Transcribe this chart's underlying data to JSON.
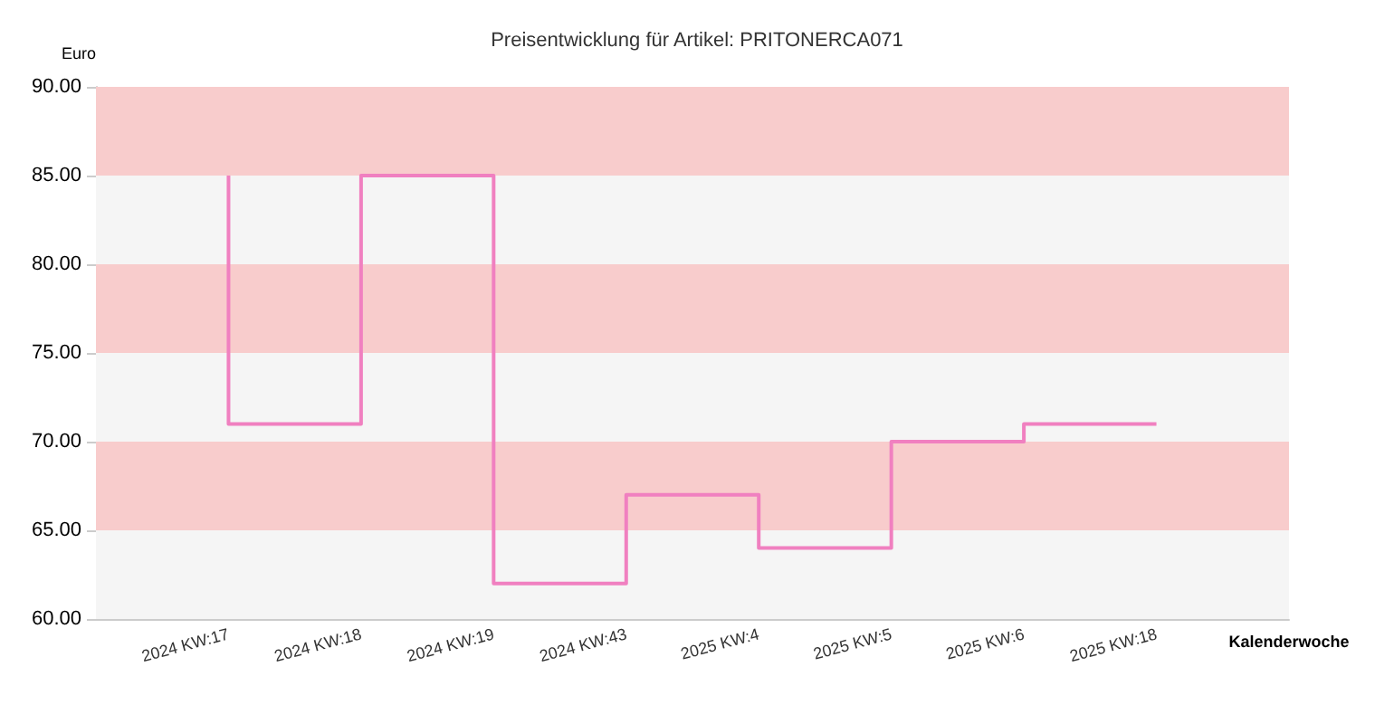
{
  "chart_data": {
    "type": "step",
    "title": "Preisentwicklung für Artikel: PRITONERCA071",
    "ylabel": "Euro",
    "xlabel": "Kalenderwoche",
    "categories": [
      "2024 KW:17",
      "2024 KW:18",
      "2024 KW:19",
      "2024 KW:43",
      "2025 KW:4",
      "2025 KW:5",
      "2025 KW:6",
      "2025 KW:18"
    ],
    "series": [
      {
        "color": "#f080c0",
        "values": [
          85,
          71,
          85,
          62,
          67,
          64,
          70,
          71
        ]
      }
    ],
    "ylim": [
      60,
      90
    ],
    "yticks": [
      {
        "value": 60,
        "label": "60.00"
      },
      {
        "value": 65,
        "label": "65.00"
      },
      {
        "value": 70,
        "label": "70.00"
      },
      {
        "value": 75,
        "label": "75.00"
      },
      {
        "value": 80,
        "label": "80.00"
      },
      {
        "value": 85,
        "label": "85.00"
      },
      {
        "value": 90,
        "label": "90.00"
      }
    ],
    "bands": [
      {
        "axis": "y",
        "from": 60,
        "to": 65,
        "color": "#f5f5f5"
      },
      {
        "axis": "y",
        "from": 65,
        "to": 70,
        "color": "#f8cccc"
      },
      {
        "axis": "y",
        "from": 70,
        "to": 75,
        "color": "#f5f5f5"
      },
      {
        "axis": "y",
        "from": 75,
        "to": 80,
        "color": "#f8cccc"
      },
      {
        "axis": "y",
        "from": 80,
        "to": 85,
        "color": "#f5f5f5"
      },
      {
        "axis": "y",
        "from": 85,
        "to": 90,
        "color": "#f8cccc"
      }
    ],
    "grid": false,
    "marker": "none",
    "line_style": "solid"
  }
}
